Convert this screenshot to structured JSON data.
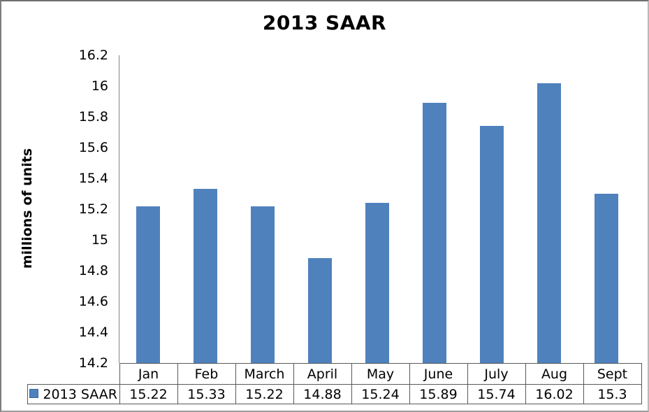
{
  "chart_data": {
    "type": "bar",
    "title": "2013 SAAR",
    "xlabel": "",
    "ylabel": "millions of units",
    "categories": [
      "Jan",
      "Feb",
      "March",
      "April",
      "May",
      "June",
      "July",
      "Aug",
      "Sept"
    ],
    "series": [
      {
        "name": "2013 SAAR",
        "values": [
          15.22,
          15.33,
          15.22,
          14.88,
          15.24,
          15.89,
          15.74,
          16.02,
          15.3
        ]
      }
    ],
    "ylim": [
      14.2,
      16.2
    ],
    "ytick_step": 0.2,
    "yticks": [
      "16.2",
      "16",
      "15.8",
      "15.6",
      "15.4",
      "15.2",
      "15",
      "14.8",
      "14.6",
      "14.4",
      "14.2"
    ],
    "grid": false,
    "legend_position": "data-table-left",
    "bar_color": "#4F81BD",
    "data_table_shown": true
  },
  "colors": {
    "bar": "#4F81BD",
    "axis_line": "#848484",
    "table_border": "#595959",
    "text": "#000000",
    "background": "#FFFFFF"
  }
}
